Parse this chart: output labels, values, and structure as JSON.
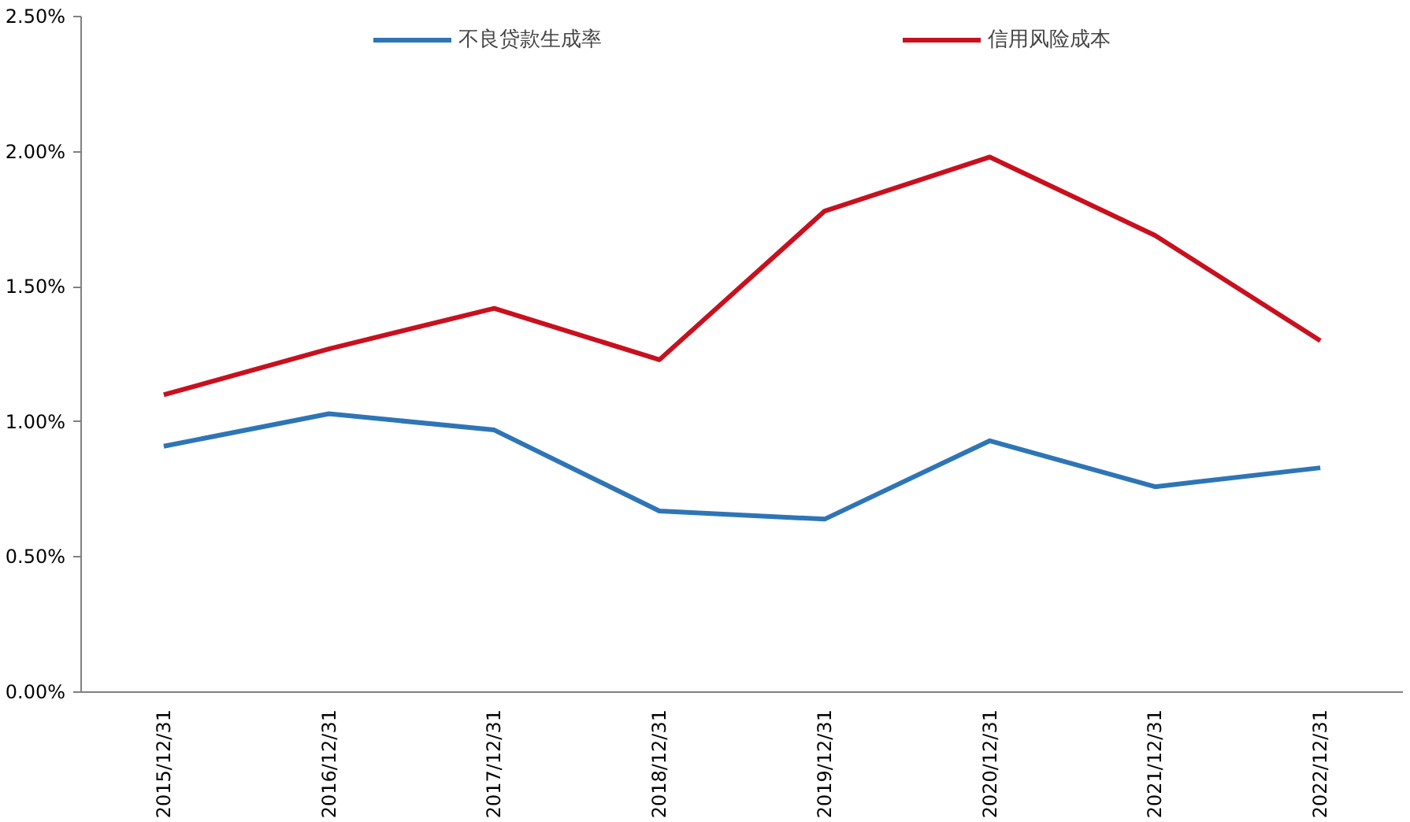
{
  "chart_data": {
    "type": "line",
    "categories": [
      "2015/12/31",
      "2016/12/31",
      "2017/12/31",
      "2018/12/31",
      "2019/12/31",
      "2020/12/31",
      "2021/12/31",
      "2022/12/31"
    ],
    "series": [
      {
        "name": "不良贷款生成率",
        "color": "#2e75b6",
        "values": [
          0.91,
          1.03,
          0.97,
          0.67,
          0.64,
          0.93,
          0.76,
          0.83
        ]
      },
      {
        "name": "信用风险成本",
        "color": "#c8101e",
        "values": [
          1.1,
          1.27,
          1.42,
          1.23,
          1.78,
          1.98,
          1.69,
          1.3
        ]
      }
    ],
    "ylim": [
      0,
      2.5
    ],
    "yticks": [
      {
        "value": 0,
        "label": "0.00%"
      },
      {
        "value": 0.5,
        "label": "0.50%"
      },
      {
        "value": 1,
        "label": "1.00%"
      },
      {
        "value": 1.5,
        "label": "1.50%"
      },
      {
        "value": 2,
        "label": "2.00%"
      },
      {
        "value": 2.5,
        "label": "2.50%"
      }
    ],
    "grid": false,
    "legend": "top",
    "marker": "none",
    "line_style": "solid"
  }
}
